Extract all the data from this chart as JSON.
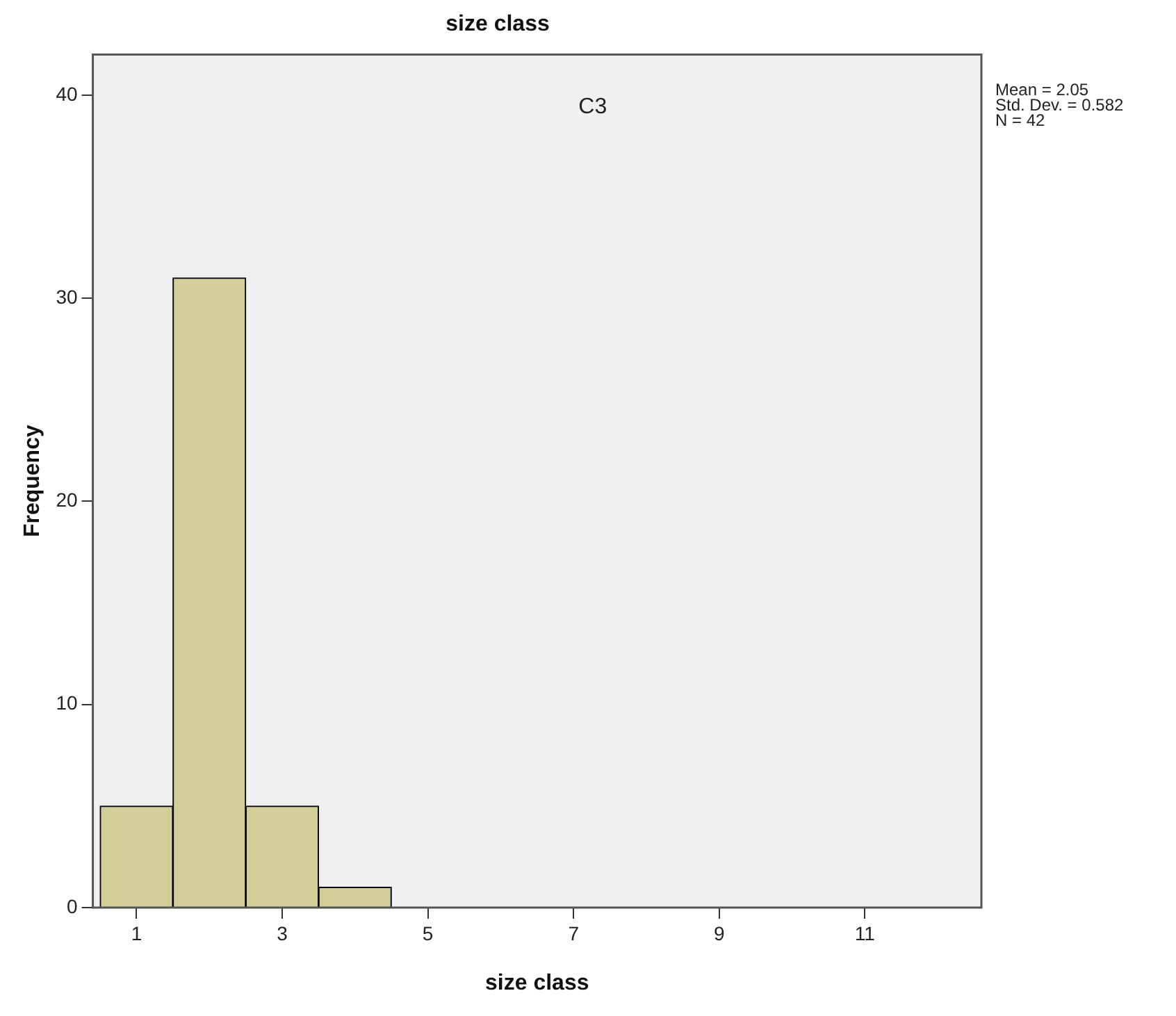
{
  "chart_data": {
    "type": "histogram",
    "title": "size class",
    "xlabel": "size class",
    "ylabel": "Frequency",
    "bins": [
      0.5,
      1.5,
      2.5,
      3.5,
      4.5
    ],
    "values": [
      5,
      31,
      5,
      1
    ],
    "color": "#d3ce98",
    "xlim": [
      0.4,
      12.6
    ],
    "xticks": [
      1,
      3,
      5,
      7,
      9,
      11
    ],
    "ylim": [
      0,
      42
    ],
    "yticks": [
      0,
      10,
      20,
      30,
      40
    ],
    "grid": false,
    "legend": false,
    "annotations": [
      "C3",
      "Mean = 2.05",
      "Std. Dev. = 0.582",
      "N = 42"
    ]
  }
}
